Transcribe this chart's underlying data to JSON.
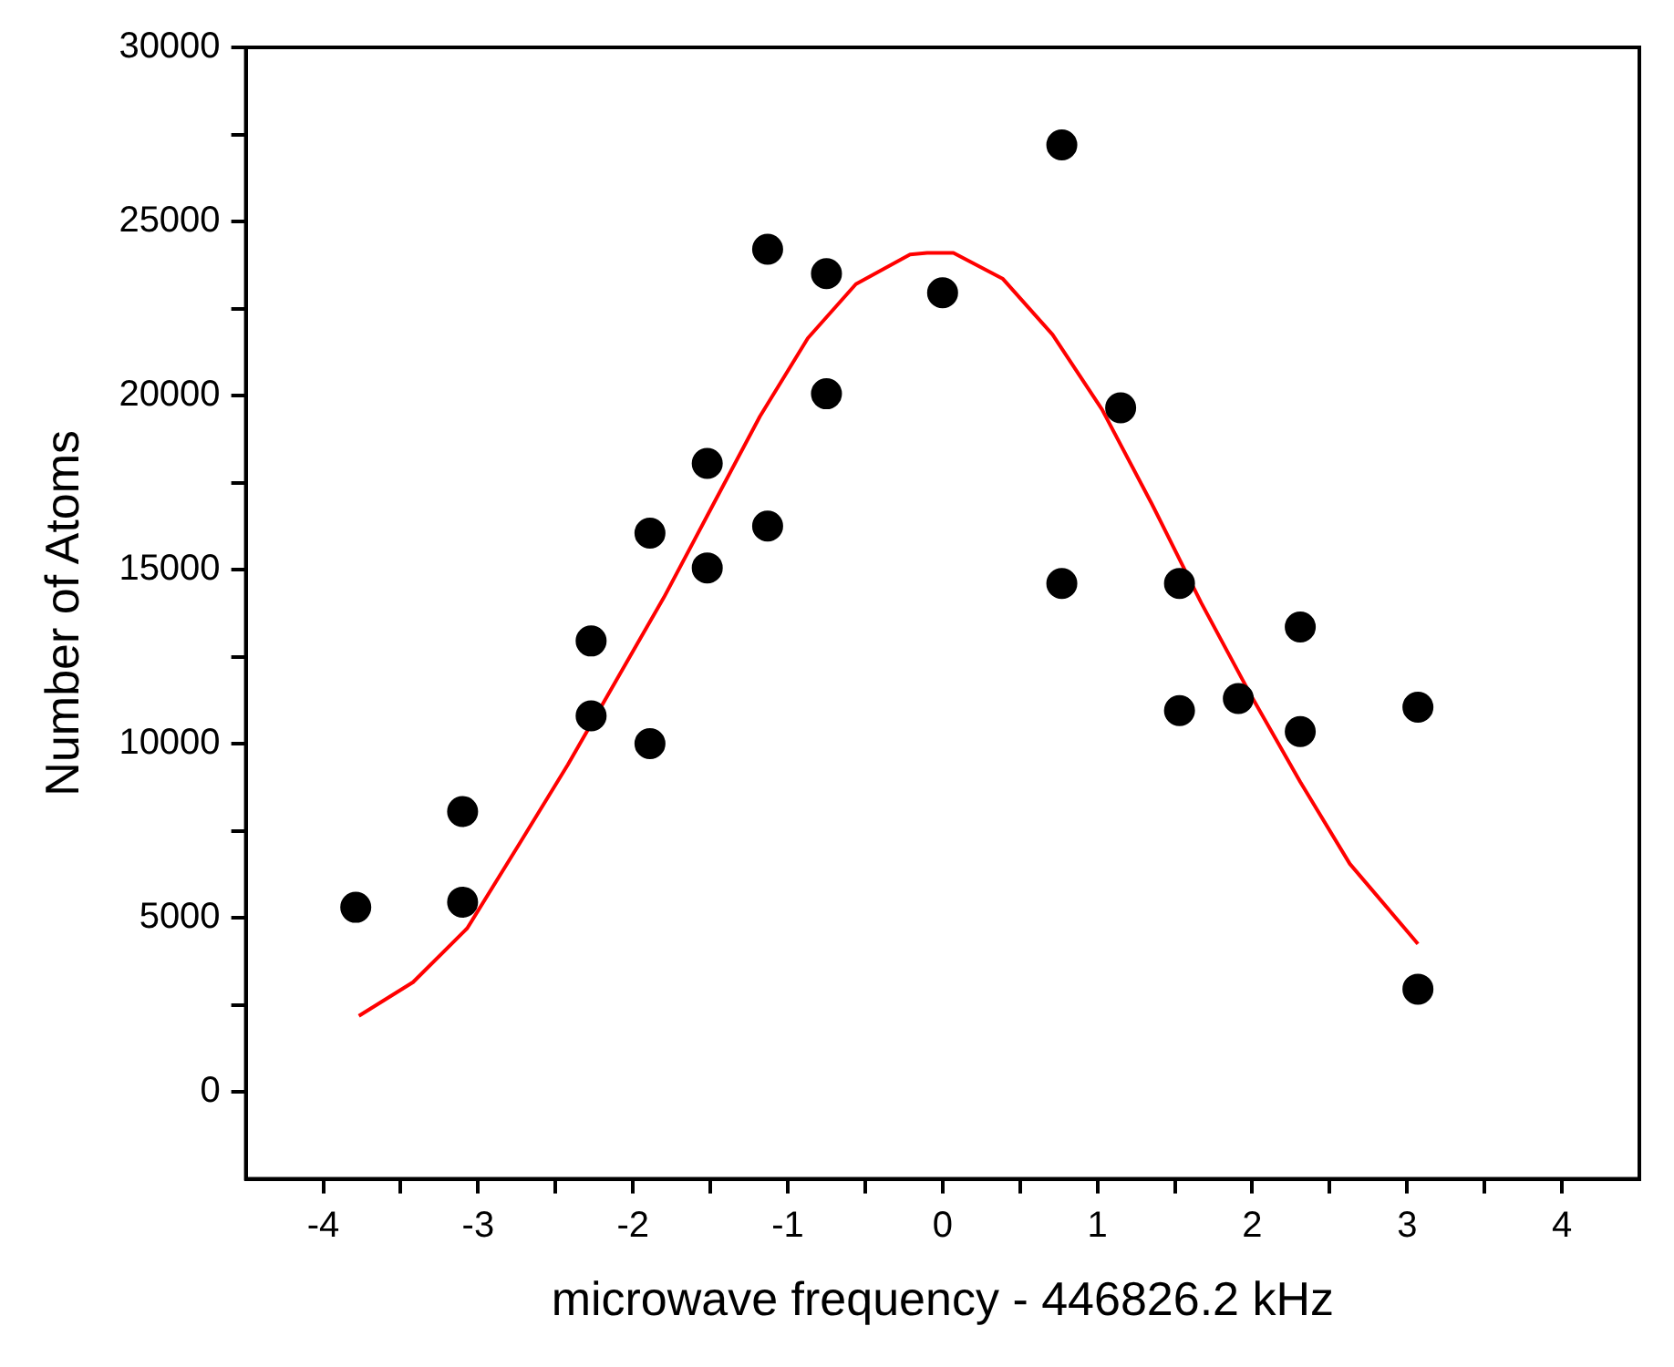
{
  "chart_data": {
    "type": "scatter",
    "xlabel": "microwave frequency - 446826.2 kHz",
    "ylabel": "Number of Atoms",
    "xlim": [
      -4.5,
      4.5
    ],
    "xticks": [
      -4,
      {
        "value": -3.5,
        "label": null
      },
      -3,
      {
        "value": -2.5,
        "label": null
      },
      -2,
      {
        "value": -1.5,
        "label": null
      },
      -1,
      {
        "value": -0.5,
        "label": null
      },
      0,
      {
        "value": 0.5,
        "label": null
      },
      1,
      {
        "value": 1.5,
        "label": null
      },
      2,
      {
        "value": 2.5,
        "label": null
      },
      3,
      {
        "value": 3.5,
        "label": null
      },
      4
    ],
    "ylim": [
      -2500,
      30000
    ],
    "yticks": [
      0,
      {
        "value": 2500,
        "label": null
      },
      5000,
      {
        "value": 7500,
        "label": null
      },
      10000,
      {
        "value": 12500,
        "label": null
      },
      15000,
      {
        "value": 17500,
        "label": null
      },
      20000,
      {
        "value": 22500,
        "label": null
      },
      25000,
      {
        "value": 27500,
        "label": null
      },
      30000
    ],
    "grid": false,
    "legend": false,
    "series": [
      {
        "color": "#000000",
        "marker": "circle",
        "x": [
          -3.79,
          -3.1,
          -3.1,
          -2.27,
          -2.27,
          -1.89,
          -1.89,
          -1.52,
          -1.52,
          -1.13,
          -1.13,
          -0.75,
          -0.75,
          0,
          0.77,
          0.77,
          1.15,
          1.53,
          1.53,
          1.91,
          2.31,
          2.31,
          3.07,
          3.07
        ],
        "values": [
          5300,
          5450,
          8050,
          10800,
          12950,
          10000,
          16050,
          15050,
          18050,
          16250,
          24200,
          20050,
          23500,
          22950,
          27200,
          14600,
          19650,
          14600,
          10950,
          11300,
          13350,
          10350,
          11050,
          2950
        ]
      },
      {
        "type": "line",
        "color": "#ff0000",
        "marker": "none",
        "line_style": "solid",
        "x": [
          -3.77,
          -3.42,
          -3.07,
          -2.73,
          -2.42,
          -2.11,
          -1.8,
          -1.49,
          -1.18,
          -0.87,
          -0.56,
          -0.21,
          -0.1,
          0.07,
          0.39,
          0.71,
          1.03,
          1.35,
          1.67,
          1.99,
          2.31,
          2.63,
          3.07
        ],
        "values": [
          2180,
          3150,
          4700,
          7150,
          9400,
          11800,
          14200,
          16800,
          19400,
          21650,
          23200,
          24050,
          24100,
          24100,
          23350,
          21750,
          19600,
          16900,
          14050,
          11400,
          8900,
          6550,
          4250
        ]
      }
    ]
  }
}
